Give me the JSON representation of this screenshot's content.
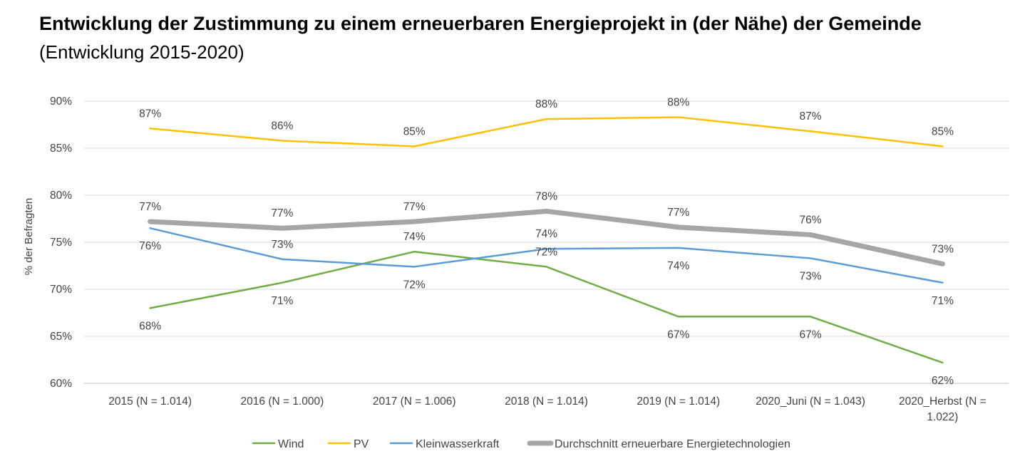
{
  "header": {
    "title": "Entwicklung der Zustimmung zu einem erneuerbaren Energieprojekt in (der Nähe) der Gemeinde",
    "subtitle": "(Entwicklung 2015-2020)"
  },
  "chart_data": {
    "type": "line",
    "title": "Entwicklung der Zustimmung zu einem erneuerbaren Energieprojekt in (der Nähe) der Gemeinde",
    "subtitle": "(Entwicklung 2015-2020)",
    "xlabel": "",
    "ylabel": "% der Befragten",
    "ylim": [
      60,
      90
    ],
    "yticks": [
      "60%",
      "65%",
      "70%",
      "75%",
      "80%",
      "85%",
      "90%"
    ],
    "grid": true,
    "legend_position": "bottom",
    "categories": [
      [
        "2015 (N = 1.014)"
      ],
      [
        "2016 (N = 1.000)"
      ],
      [
        "2017 (N = 1.006)"
      ],
      [
        "2018 (N = 1.014)"
      ],
      [
        "2019 (N = 1.014)"
      ],
      [
        "2020_Juni (N = 1.043)"
      ],
      [
        "2020_Herbst (N =",
        "1.022)"
      ]
    ],
    "series": [
      {
        "name": "Wind",
        "color": "#70AD47",
        "values": [
          68.0,
          70.7,
          74.0,
          72.4,
          67.1,
          67.1,
          62.2
        ],
        "labels": [
          "68%",
          "71%",
          "74%",
          "72%",
          "67%",
          "67%",
          "62%"
        ],
        "label_pos": [
          "below",
          "below",
          "above",
          "above",
          "below",
          "below",
          "below"
        ]
      },
      {
        "name": "PV",
        "color": "#FFC000",
        "values": [
          87.1,
          85.8,
          85.2,
          88.1,
          88.3,
          86.8,
          85.2
        ],
        "labels": [
          "87%",
          "86%",
          "85%",
          "88%",
          "88%",
          "87%",
          "85%"
        ],
        "label_pos": [
          "above",
          "above",
          "above",
          "above",
          "above",
          "above",
          "above"
        ]
      },
      {
        "name": "Kleinwasserkraft",
        "color": "#5B9BD5",
        "values": [
          76.5,
          73.2,
          72.4,
          74.3,
          74.4,
          73.3,
          70.7
        ],
        "labels": [
          "76%",
          "73%",
          "72%",
          "74%",
          "74%",
          "73%",
          "71%"
        ],
        "label_pos": [
          "below",
          "above",
          "below",
          "above",
          "below",
          "below",
          "below"
        ]
      },
      {
        "name": "Durchschnitt erneuerbare Energietechnologien",
        "color": "#A6A6A6",
        "values": [
          77.2,
          76.5,
          77.2,
          78.3,
          76.6,
          75.8,
          72.7
        ],
        "labels": [
          "77%",
          "77%",
          "77%",
          "78%",
          "77%",
          "76%",
          "73%"
        ],
        "label_pos": [
          "above",
          "above",
          "above",
          "above",
          "above",
          "above",
          "above"
        ]
      }
    ]
  }
}
